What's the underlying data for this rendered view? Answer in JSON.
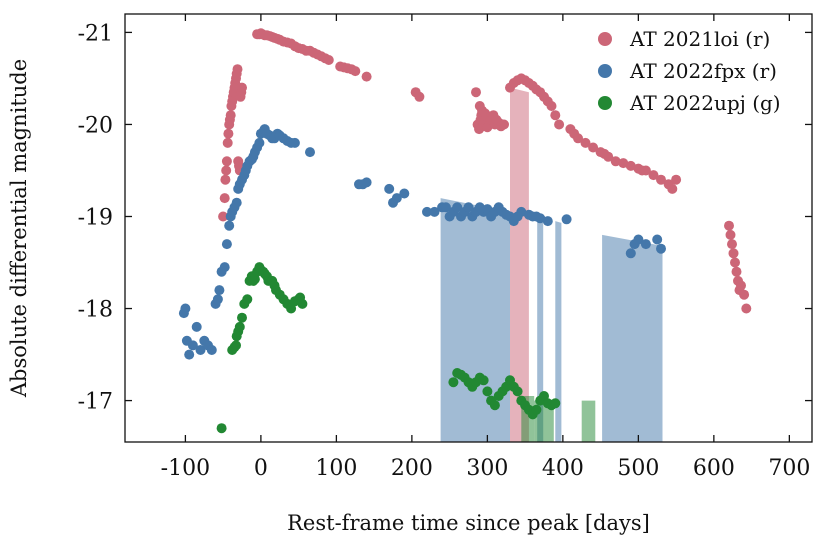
{
  "chart_data": {
    "type": "scatter",
    "title": "",
    "xlabel": "Rest-frame time since peak [days]",
    "ylabel": "Absolute differential magnitude",
    "xlim": [
      -180,
      730
    ],
    "ylim": [
      -16.55,
      -21.2
    ],
    "y_inverted": true,
    "xticks": [
      -100,
      0,
      100,
      200,
      300,
      400,
      500,
      600,
      700
    ],
    "xtick_labels": [
      "-100",
      "0",
      "100",
      "200",
      "300",
      "400",
      "500",
      "600",
      "700"
    ],
    "yticks": [
      -21,
      -20,
      -19,
      -18,
      -17
    ],
    "ytick_labels": [
      "-21",
      "-20",
      "-19",
      "-18",
      "-17"
    ],
    "legend_position": "top-right",
    "grid": false,
    "series": [
      {
        "name": "AT 2021loi (r)",
        "color": "#cc6677",
        "x": [
          -50,
          -48,
          -47,
          -46,
          -45,
          -44,
          -43,
          -42,
          -41,
          -40,
          -39,
          -38,
          -37,
          -36,
          -35,
          -34,
          -33,
          -32,
          -31,
          -30,
          -29,
          -28,
          -27,
          -26,
          -25,
          -5,
          -2,
          0,
          2,
          5,
          8,
          12,
          15,
          18,
          22,
          25,
          30,
          35,
          40,
          45,
          50,
          55,
          60,
          65,
          70,
          75,
          80,
          85,
          90,
          105,
          110,
          115,
          120,
          125,
          140,
          205,
          210,
          285,
          287,
          289,
          290,
          291,
          292,
          293,
          294,
          295,
          296,
          297,
          298,
          300,
          303,
          305,
          308,
          310,
          312,
          315,
          318,
          320,
          322,
          330,
          335,
          340,
          345,
          350,
          355,
          360,
          365,
          370,
          375,
          380,
          385,
          390,
          395,
          410,
          415,
          420,
          430,
          440,
          450,
          455,
          460,
          470,
          480,
          490,
          500,
          505,
          510,
          520,
          530,
          540,
          545,
          550,
          620,
          622,
          624,
          626,
          628,
          630,
          632,
          634,
          636,
          640,
          643
        ],
        "y": [
          -19.0,
          -19.2,
          -19.4,
          -19.5,
          -19.6,
          -19.8,
          -19.9,
          -20.0,
          -20.05,
          -20.1,
          -20.2,
          -20.25,
          -20.3,
          -20.35,
          -20.4,
          -20.45,
          -20.5,
          -20.55,
          -20.6,
          -19.6,
          -19.55,
          -19.5,
          -20.3,
          -20.35,
          -20.4,
          -20.98,
          -20.98,
          -20.99,
          -20.98,
          -20.97,
          -20.97,
          -20.96,
          -20.95,
          -20.94,
          -20.93,
          -20.92,
          -20.9,
          -20.89,
          -20.88,
          -20.85,
          -20.83,
          -20.82,
          -20.8,
          -20.8,
          -20.78,
          -20.76,
          -20.74,
          -20.72,
          -20.7,
          -20.63,
          -20.62,
          -20.61,
          -20.6,
          -20.58,
          -20.52,
          -20.35,
          -20.3,
          -20.35,
          -20.0,
          -19.95,
          -20.2,
          -20.05,
          -20.1,
          -20.15,
          -19.98,
          -20.0,
          -20.08,
          -20.12,
          -20.0,
          -19.97,
          -20.0,
          -20.05,
          -20.1,
          -20.0,
          -20.05,
          -20.02,
          -19.98,
          -20.0,
          -20.0,
          -20.4,
          -20.45,
          -20.48,
          -20.5,
          -20.48,
          -20.45,
          -20.42,
          -20.38,
          -20.35,
          -20.3,
          -20.25,
          -20.2,
          -20.1,
          -20.0,
          -19.95,
          -19.9,
          -19.85,
          -19.8,
          -19.75,
          -19.7,
          -19.68,
          -19.65,
          -19.6,
          -19.58,
          -19.55,
          -19.52,
          -19.5,
          -19.5,
          -19.45,
          -19.4,
          -19.35,
          -19.3,
          -19.4,
          -18.9,
          -18.8,
          -18.7,
          -18.6,
          -18.5,
          -18.4,
          -18.3,
          -18.2,
          -18.25,
          -18.15,
          -18.0
        ]
      },
      {
        "name": "AT 2022fpx (r)",
        "color": "#4477aa",
        "x": [
          -102,
          -100,
          -98,
          -95,
          -90,
          -85,
          -80,
          -75,
          -70,
          -65,
          -60,
          -57,
          -55,
          -52,
          -48,
          -45,
          -42,
          -40,
          -38,
          -35,
          -32,
          -30,
          -28,
          -25,
          -22,
          -20,
          -18,
          -15,
          -12,
          -10,
          -8,
          -5,
          -2,
          0,
          3,
          5,
          8,
          12,
          15,
          18,
          22,
          25,
          30,
          35,
          40,
          45,
          65,
          130,
          135,
          140,
          170,
          175,
          180,
          190,
          220,
          230,
          240,
          245,
          250,
          255,
          260,
          265,
          270,
          275,
          280,
          285,
          290,
          295,
          300,
          305,
          310,
          315,
          320,
          325,
          330,
          335,
          340,
          345,
          355,
          360,
          365,
          370,
          380,
          405,
          490,
          495,
          500,
          510,
          525,
          530
        ],
        "y": [
          -17.95,
          -18.0,
          -17.65,
          -17.5,
          -17.6,
          -17.8,
          -17.55,
          -17.65,
          -17.6,
          -17.55,
          -18.05,
          -18.1,
          -18.2,
          -18.4,
          -18.45,
          -18.7,
          -18.9,
          -19.0,
          -19.05,
          -19.1,
          -19.15,
          -19.3,
          -19.35,
          -19.4,
          -19.45,
          -19.5,
          -19.55,
          -19.6,
          -19.62,
          -19.65,
          -19.7,
          -19.75,
          -19.8,
          -19.9,
          -19.92,
          -19.95,
          -19.9,
          -19.88,
          -19.85,
          -19.85,
          -19.9,
          -19.88,
          -19.85,
          -19.82,
          -19.8,
          -19.8,
          -19.7,
          -19.35,
          -19.35,
          -19.37,
          -19.3,
          -19.15,
          -19.2,
          -19.25,
          -19.05,
          -19.05,
          -19.1,
          -19.1,
          -19.0,
          -19.05,
          -19.1,
          -19.0,
          -19.05,
          -19.1,
          -19.0,
          -19.05,
          -19.1,
          -19.05,
          -19.08,
          -19.0,
          -19.05,
          -19.1,
          -19.05,
          -19.02,
          -19.0,
          -18.95,
          -19.0,
          -19.05,
          -19.02,
          -19.0,
          -19.0,
          -18.98,
          -18.95,
          -18.97,
          -18.6,
          -18.7,
          -18.75,
          -18.7,
          -18.75,
          -18.65
        ]
      },
      {
        "name": "AT 2022upj (g)",
        "color": "#228833",
        "x": [
          -52,
          -38,
          -35,
          -33,
          -32,
          -30,
          -28,
          -25,
          -22,
          -18,
          -15,
          -12,
          -10,
          -8,
          -5,
          -2,
          0,
          3,
          5,
          8,
          10,
          15,
          18,
          20,
          25,
          30,
          35,
          40,
          45,
          50,
          52,
          55,
          255,
          260,
          265,
          270,
          275,
          280,
          285,
          290,
          295,
          300,
          305,
          310,
          315,
          320,
          325,
          330,
          335,
          340,
          345,
          350,
          355,
          360,
          365,
          370,
          375,
          380,
          385,
          390
        ],
        "y": [
          -16.7,
          -17.55,
          -17.58,
          -17.6,
          -17.7,
          -17.75,
          -17.8,
          -17.9,
          -18.05,
          -18.1,
          -18.3,
          -18.35,
          -18.3,
          -18.32,
          -18.4,
          -18.45,
          -18.42,
          -18.4,
          -18.38,
          -18.35,
          -18.3,
          -18.3,
          -18.25,
          -18.2,
          -18.15,
          -18.1,
          -18.05,
          -18.0,
          -18.08,
          -18.1,
          -18.12,
          -18.05,
          -17.2,
          -17.3,
          -17.28,
          -17.25,
          -17.2,
          -17.15,
          -17.2,
          -17.25,
          -17.22,
          -17.1,
          -17.0,
          -16.95,
          -17.05,
          -17.1,
          -17.15,
          -17.22,
          -17.15,
          -17.1,
          -17.0,
          -16.95,
          -16.9,
          -16.85,
          -16.9,
          -17.0,
          -17.05,
          -16.97,
          -16.95,
          -16.97
        ]
      }
    ],
    "shaded_regions": [
      {
        "series": "AT 2021loi (r)",
        "color": "#cc6677",
        "polygon": [
          [
            330,
            -16.55
          ],
          [
            330,
            -20.4
          ],
          [
            355,
            -20.35
          ],
          [
            355,
            -16.55
          ]
        ]
      },
      {
        "series": "AT 2022fpx (r)",
        "color": "#4477aa",
        "polygon": [
          [
            238,
            -16.55
          ],
          [
            238,
            -19.2
          ],
          [
            330,
            -19.05
          ],
          [
            330,
            -16.55
          ]
        ]
      },
      {
        "series": "AT 2022fpx (r)",
        "color": "#4477aa",
        "polygon": [
          [
            366,
            -16.55
          ],
          [
            366,
            -18.95
          ],
          [
            374,
            -18.93
          ],
          [
            374,
            -16.55
          ]
        ]
      },
      {
        "series": "AT 2022fpx (r)",
        "color": "#4477aa",
        "polygon": [
          [
            390,
            -16.55
          ],
          [
            390,
            -18.95
          ],
          [
            398,
            -18.93
          ],
          [
            398,
            -16.55
          ]
        ]
      },
      {
        "series": "AT 2022fpx (r)",
        "color": "#4477aa",
        "polygon": [
          [
            452,
            -16.55
          ],
          [
            452,
            -18.8
          ],
          [
            532,
            -18.68
          ],
          [
            532,
            -16.55
          ]
        ]
      },
      {
        "series": "AT 2022upj (g)",
        "color": "#228833",
        "polygon": [
          [
            345,
            -16.55
          ],
          [
            345,
            -17.05
          ],
          [
            362,
            -17.05
          ],
          [
            362,
            -16.55
          ]
        ]
      },
      {
        "series": "AT 2022upj (g)",
        "color": "#228833",
        "polygon": [
          [
            362,
            -16.55
          ],
          [
            362,
            -17.0
          ],
          [
            388,
            -17.0
          ],
          [
            388,
            -16.55
          ]
        ]
      },
      {
        "series": "AT 2022upj (g)",
        "color": "#228833",
        "polygon": [
          [
            425,
            -16.55
          ],
          [
            425,
            -17.0
          ],
          [
            443,
            -17.0
          ],
          [
            443,
            -16.55
          ]
        ]
      }
    ]
  }
}
